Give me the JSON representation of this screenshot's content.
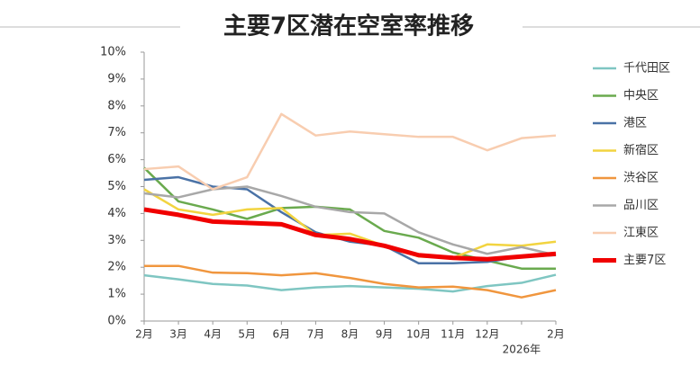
{
  "chart_data": {
    "type": "line",
    "title": "主要7区潜在空室率推移",
    "categories": [
      "2月",
      "3月",
      "4月",
      "5月",
      "6月",
      "7月",
      "8月",
      "9月",
      "10月",
      "11月",
      "12月",
      null,
      "2月"
    ],
    "x_annotation": "2026年",
    "ylim": [
      0,
      10
    ],
    "yticks": [
      {
        "value": 0,
        "label": "0%"
      },
      {
        "value": 1,
        "label": "1%"
      },
      {
        "value": 2,
        "label": "2%"
      },
      {
        "value": 3,
        "label": "3%"
      },
      {
        "value": 4,
        "label": "4%"
      },
      {
        "value": 5,
        "label": "5%"
      },
      {
        "value": 6,
        "label": "6%"
      },
      {
        "value": 7,
        "label": "7%"
      },
      {
        "value": 8,
        "label": "8%"
      },
      {
        "value": 9,
        "label": "9%"
      },
      {
        "value": 10,
        "label": "10%"
      }
    ],
    "legend": "right",
    "series": [
      {
        "name": "千代田区",
        "color": "#7fc6c2",
        "values": [
          1.7,
          1.55,
          1.38,
          1.32,
          1.15,
          1.25,
          1.3,
          1.25,
          1.2,
          1.1,
          1.3,
          1.42,
          1.72
        ]
      },
      {
        "name": "中央区",
        "color": "#6aaa4e",
        "values": [
          5.7,
          4.45,
          4.15,
          3.8,
          4.2,
          4.25,
          4.15,
          3.35,
          3.1,
          2.55,
          2.25,
          1.95,
          1.95
        ]
      },
      {
        "name": "港区",
        "color": "#4a72a6",
        "values": [
          5.25,
          5.35,
          5.0,
          4.9,
          4.05,
          3.3,
          2.95,
          2.8,
          2.15,
          2.15,
          2.2,
          2.4,
          2.45
        ]
      },
      {
        "name": "新宿区",
        "color": "#f2d440",
        "values": [
          4.9,
          4.15,
          3.95,
          4.15,
          4.2,
          3.2,
          3.25,
          2.8,
          2.4,
          2.35,
          2.85,
          2.8,
          2.95
        ]
      },
      {
        "name": "渋谷区",
        "color": "#f0963e",
        "values": [
          2.05,
          2.05,
          1.8,
          1.78,
          1.7,
          1.78,
          1.6,
          1.38,
          1.25,
          1.28,
          1.15,
          0.88,
          1.15
        ]
      },
      {
        "name": "品川区",
        "color": "#a8a8a8",
        "values": [
          4.75,
          4.6,
          4.9,
          5.0,
          4.65,
          4.25,
          4.05,
          4.0,
          3.3,
          2.85,
          2.5,
          2.75,
          2.45
        ]
      },
      {
        "name": "江東区",
        "color": "#f8cdb0",
        "values": [
          5.65,
          5.75,
          4.9,
          5.35,
          7.7,
          6.9,
          7.05,
          6.95,
          6.85,
          6.85,
          6.35,
          6.8,
          6.9
        ]
      },
      {
        "name": "主要7区",
        "color": "#f00000",
        "values": [
          4.15,
          3.95,
          3.7,
          3.65,
          3.6,
          3.2,
          3.05,
          2.8,
          2.45,
          2.35,
          2.3,
          2.4,
          2.5
        ]
      }
    ]
  }
}
